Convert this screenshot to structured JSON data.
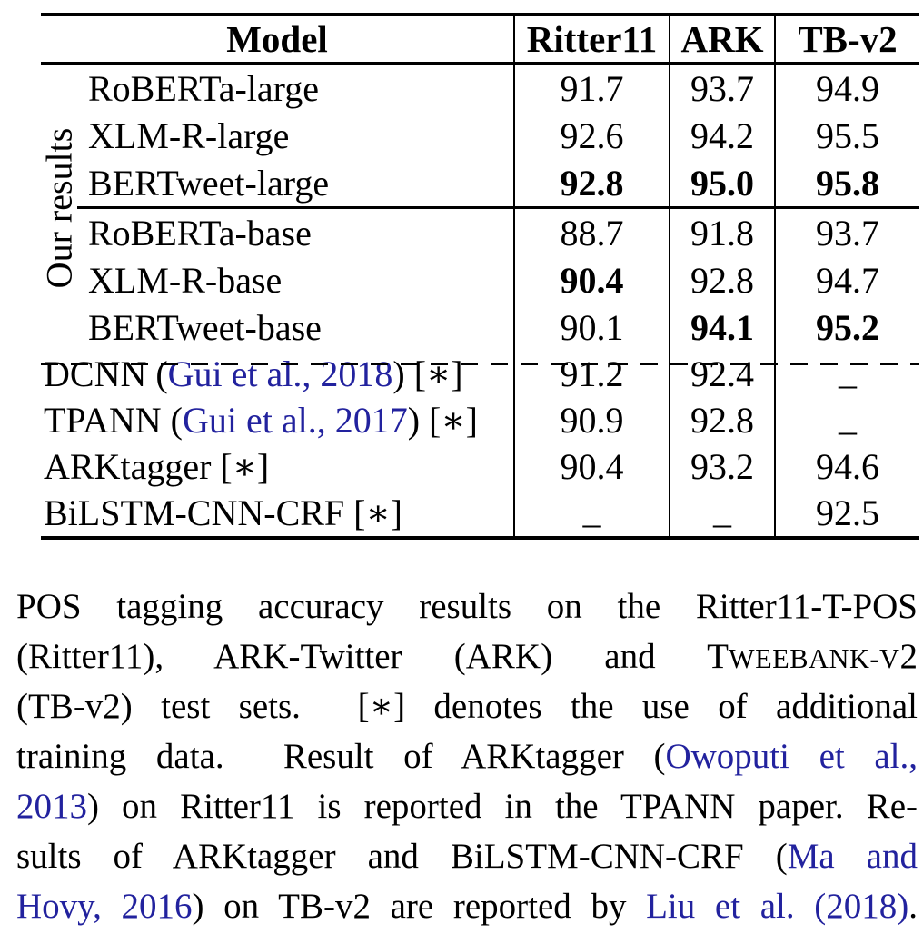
{
  "colors": {
    "citation_blue": "#22229e",
    "ink": "#000000"
  },
  "table": {
    "group_label": "Our results",
    "header": {
      "model": "Model",
      "datasets": [
        "Ritter11",
        "ARK",
        "TB-v2"
      ]
    },
    "rows": [
      {
        "group": true,
        "name": [
          {
            "t": "RoBERTa-large"
          }
        ],
        "values": [
          {
            "v": "91.7"
          },
          {
            "v": "93.7"
          },
          {
            "v": "94.9"
          }
        ]
      },
      {
        "group": true,
        "name": [
          {
            "t": "XLM-R-large"
          }
        ],
        "values": [
          {
            "v": "92.6"
          },
          {
            "v": "94.2"
          },
          {
            "v": "95.5"
          }
        ]
      },
      {
        "group": true,
        "cline": true,
        "name": [
          {
            "t": "BERTweet-large"
          }
        ],
        "values": [
          {
            "v": "92.8",
            "b": true
          },
          {
            "v": "95.0",
            "b": true
          },
          {
            "v": "95.8",
            "b": true
          }
        ]
      },
      {
        "group": true,
        "name": [
          {
            "t": "RoBERTa-base"
          }
        ],
        "values": [
          {
            "v": "88.7"
          },
          {
            "v": "91.8"
          },
          {
            "v": "93.7"
          }
        ]
      },
      {
        "group": true,
        "name": [
          {
            "t": "XLM-R-base"
          }
        ],
        "values": [
          {
            "v": "90.4",
            "b": true
          },
          {
            "v": "92.8"
          },
          {
            "v": "94.7"
          }
        ]
      },
      {
        "group": true,
        "dashed": true,
        "name": [
          {
            "t": "BERTweet-base"
          }
        ],
        "values": [
          {
            "v": "90.1"
          },
          {
            "v": "94.1",
            "b": true
          },
          {
            "v": "95.2",
            "b": true
          }
        ]
      },
      {
        "name": [
          {
            "t": "DCNN ("
          },
          {
            "t": "Gui et al., 2018",
            "cite": true
          },
          {
            "t": ") [∗]"
          }
        ],
        "values": [
          {
            "v": "91.2"
          },
          {
            "v": "92.4"
          },
          {
            "v": "–",
            "dash": true
          }
        ]
      },
      {
        "name": [
          {
            "t": "TPANN ("
          },
          {
            "t": "Gui et al., 2017",
            "cite": true
          },
          {
            "t": ") [∗]"
          }
        ],
        "values": [
          {
            "v": "90.9"
          },
          {
            "v": "92.8"
          },
          {
            "v": "–",
            "dash": true
          }
        ]
      },
      {
        "name": [
          {
            "t": "ARKtagger [∗]"
          }
        ],
        "values": [
          {
            "v": "90.4"
          },
          {
            "v": "93.2"
          },
          {
            "v": "94.6"
          }
        ]
      },
      {
        "name": [
          {
            "t": "BiLSTM-CNN-CRF [∗]"
          }
        ],
        "values": [
          {
            "v": "–",
            "dash": true
          },
          {
            "v": "–",
            "dash": true
          },
          {
            "v": "92.5"
          }
        ]
      }
    ]
  },
  "caption": {
    "lines": [
      [
        {
          "t": "POS tagging accuracy results on the Ritter11-T-POS"
        }
      ],
      [
        {
          "t": "(Ritter11), ARK-Twitter (ARK) and T"
        },
        {
          "t": "WEEBANK-V",
          "sc": true
        },
        {
          "t": "2"
        }
      ],
      [
        {
          "t": "(TB-v2) test sets.  [∗] denotes the use of additional"
        }
      ],
      [
        {
          "t": "training data.  Result of ARKtagger ("
        },
        {
          "t": "Owoputi et al.,",
          "cite": true
        }
      ],
      [
        {
          "t": "2013",
          "cite": true
        },
        {
          "t": ") on Ritter11 is reported in the TPANN paper. Re-"
        }
      ],
      [
        {
          "t": "sults of ARKtagger and BiLSTM-CNN-CRF ("
        },
        {
          "t": "Ma and",
          "cite": true
        }
      ],
      [
        {
          "t": "Hovy, 2016",
          "cite": true
        },
        {
          "t": ") on TB-v2 are reported by "
        },
        {
          "t": "Liu et al. (2018)",
          "cite": true
        },
        {
          "t": "."
        }
      ]
    ]
  }
}
